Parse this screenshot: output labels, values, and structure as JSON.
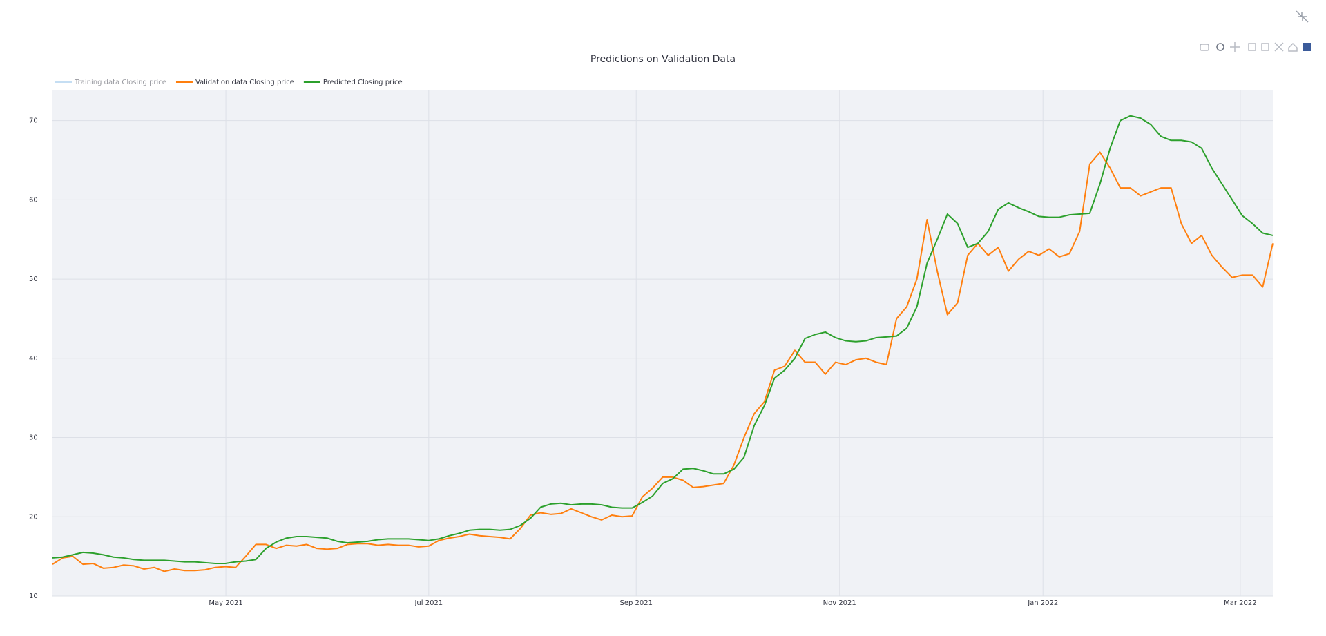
{
  "chart_data": {
    "type": "line",
    "title": "Predictions on Validation Data",
    "xlim": [
      0,
      120
    ],
    "xticks": [
      {
        "value": 17.05,
        "label": "May 2021"
      },
      {
        "value": 37.0,
        "label": "Jul 2021"
      },
      {
        "value": 57.4,
        "label": "Sep 2021"
      },
      {
        "value": 77.4,
        "label": "Nov 2021"
      },
      {
        "value": 97.4,
        "label": "Jan 2022"
      },
      {
        "value": 116.8,
        "label": "Mar 2022"
      }
    ],
    "ylim": [
      10,
      73.8
    ],
    "yticks": [
      10,
      20,
      30,
      40,
      50,
      60,
      70
    ],
    "grid": true,
    "legend": "top-left",
    "series": [
      {
        "name": "Training data Closing price",
        "color": "#8cbfe8",
        "visible": false
      },
      {
        "name": "Validation data Closing price",
        "color": "#ff7f0e",
        "values": [
          14.0,
          14.8,
          15.0,
          14.0,
          14.1,
          13.5,
          13.6,
          13.9,
          13.8,
          13.4,
          13.6,
          13.1,
          13.4,
          13.2,
          13.2,
          13.3,
          13.6,
          13.7,
          13.6,
          15.0,
          16.5,
          16.5,
          16.0,
          16.4,
          16.3,
          16.5,
          16.0,
          15.9,
          16.0,
          16.5,
          16.6,
          16.6,
          16.4,
          16.5,
          16.4,
          16.4,
          16.2,
          16.3,
          17.0,
          17.3,
          17.5,
          17.8,
          17.6,
          17.5,
          17.4,
          17.2,
          18.5,
          20.2,
          20.5,
          20.3,
          20.4,
          21.0,
          20.5,
          20.0,
          19.6,
          20.2,
          20.0,
          20.1,
          22.5,
          23.6,
          25.0,
          25.0,
          24.6,
          23.7,
          23.8,
          24.0,
          24.2,
          26.5,
          30.0,
          33.0,
          34.5,
          38.5,
          39.0,
          41.0,
          39.5,
          39.5,
          38.0,
          39.5,
          39.2,
          39.8,
          40.0,
          39.5,
          39.2,
          45.0,
          46.5,
          50.0,
          57.5,
          51.0,
          45.5,
          47.0,
          53.0,
          54.5,
          53.0,
          54.0,
          51.0,
          52.5,
          53.5,
          53.0,
          53.8,
          52.8,
          53.2,
          56.0,
          64.5,
          66.0,
          64.0,
          61.5,
          61.5,
          60.5,
          61.0,
          61.5,
          61.5,
          57.0,
          54.5,
          55.5,
          53.0,
          51.5,
          50.2,
          50.5,
          50.5,
          49.0,
          54.5
        ]
      },
      {
        "name": "Predicted Closing price",
        "color": "#2ca02c",
        "values": [
          14.8,
          14.9,
          15.2,
          15.5,
          15.4,
          15.2,
          14.9,
          14.8,
          14.6,
          14.5,
          14.5,
          14.5,
          14.4,
          14.3,
          14.3,
          14.2,
          14.1,
          14.1,
          14.3,
          14.4,
          14.6,
          16.0,
          16.8,
          17.3,
          17.5,
          17.5,
          17.4,
          17.3,
          16.9,
          16.7,
          16.8,
          16.9,
          17.1,
          17.2,
          17.2,
          17.2,
          17.1,
          17.0,
          17.2,
          17.6,
          17.9,
          18.3,
          18.4,
          18.4,
          18.3,
          18.4,
          18.9,
          19.8,
          21.2,
          21.6,
          21.7,
          21.5,
          21.6,
          21.6,
          21.5,
          21.2,
          21.1,
          21.1,
          21.8,
          22.6,
          24.2,
          24.8,
          26.0,
          26.1,
          25.8,
          25.4,
          25.4,
          26.0,
          27.5,
          31.5,
          34.0,
          37.5,
          38.5,
          40.0,
          42.5,
          43.0,
          43.3,
          42.6,
          42.2,
          42.1,
          42.2,
          42.6,
          42.7,
          42.8,
          43.8,
          46.5,
          52.0,
          55.0,
          58.2,
          57.0,
          54.0,
          54.5,
          56.0,
          58.8,
          59.6,
          59.0,
          58.5,
          57.9,
          57.8,
          57.8,
          58.1,
          58.2,
          58.3,
          62.0,
          66.5,
          70.0,
          70.6,
          70.3,
          69.5,
          68.0,
          67.5,
          67.5,
          67.3,
          66.5,
          64.0,
          62.0,
          60.0,
          58.0,
          57.0,
          55.8,
          55.5
        ]
      }
    ]
  }
}
